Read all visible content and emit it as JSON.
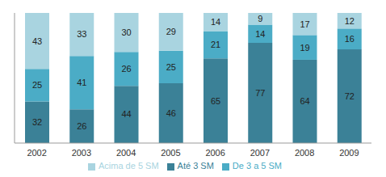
{
  "chart_data": {
    "type": "bar",
    "categories": [
      "2002",
      "2003",
      "2004",
      "2005",
      "2006",
      "2007",
      "2008",
      "2009"
    ],
    "series": [
      {
        "name": "Até 3 SM",
        "color": "#3b8197",
        "values": [
          32,
          26,
          44,
          46,
          65,
          77,
          64,
          72
        ]
      },
      {
        "name": "De 3 a 5 SM",
        "color": "#4bacc6",
        "values": [
          25,
          41,
          26,
          25,
          21,
          14,
          19,
          16
        ]
      },
      {
        "name": "Acima de 5 SM",
        "color": "#a9d4e0",
        "values": [
          43,
          33,
          30,
          29,
          14,
          9,
          17,
          12
        ]
      }
    ],
    "ylim": [
      0,
      100
    ],
    "stacked": true,
    "data_labels": true,
    "tick_labels": "x",
    "legend": "bottom"
  }
}
